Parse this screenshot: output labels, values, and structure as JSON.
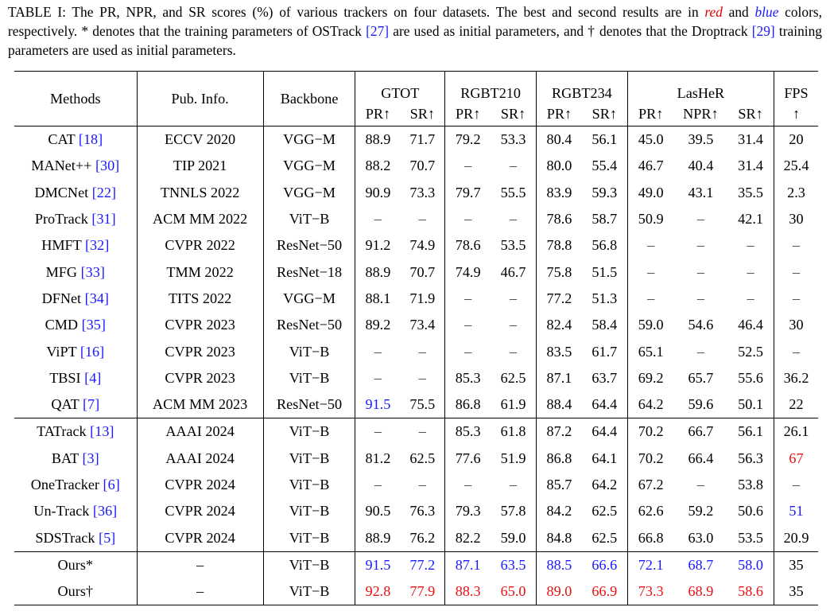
{
  "caption": {
    "part1": "TABLE I: The PR, NPR, and SR scores (%) of various trackers on four datasets. The best and second results are in ",
    "red_word": "red",
    "part2": " and ",
    "blue_word": "blue",
    "part3": " colors, respectively. * denotes that the training parameters of OSTrack ",
    "ref1": "[27]",
    "part4": " are used as initial parameters, and † denotes that the Droptrack ",
    "ref2": "[29]",
    "part5": " training parameters are used as initial parameters."
  },
  "headers": {
    "methods": "Methods",
    "pub": "Pub. Info.",
    "backbone": "Backbone",
    "gtot": "GTOT",
    "rgbt210": "RGBT210",
    "rgbt234": "RGBT234",
    "lasher": "LasHeR",
    "fps": "FPS",
    "pr": "PR↑",
    "sr": "SR↑",
    "npr": "NPR↑",
    "fps_arrow": "↑"
  },
  "colors": {
    "best": "#e81010",
    "second": "#1a1aff"
  },
  "rows": [
    {
      "name": "CAT",
      "ref": "[18]",
      "pub": "ECCV 2020",
      "backbone": "VGG−M",
      "v": [
        "88.9",
        "71.7",
        "79.2",
        "53.3",
        "80.4",
        "56.1",
        "45.0",
        "39.5",
        "31.4",
        "20"
      ],
      "c": [
        "",
        "",
        "",
        "",
        "",
        "",
        "",
        "",
        "",
        ""
      ]
    },
    {
      "name": "MANet++",
      "ref": "[30]",
      "pub": "TIP 2021",
      "backbone": "VGG−M",
      "v": [
        "88.2",
        "70.7",
        "–",
        "–",
        "80.0",
        "55.4",
        "46.7",
        "40.4",
        "31.4",
        "25.4"
      ],
      "c": [
        "",
        "",
        "",
        "",
        "",
        "",
        "",
        "",
        "",
        ""
      ]
    },
    {
      "name": "DMCNet",
      "ref": "[22]",
      "pub": "TNNLS 2022",
      "backbone": "VGG−M",
      "v": [
        "90.9",
        "73.3",
        "79.7",
        "55.5",
        "83.9",
        "59.3",
        "49.0",
        "43.1",
        "35.5",
        "2.3"
      ],
      "c": [
        "",
        "",
        "",
        "",
        "",
        "",
        "",
        "",
        "",
        ""
      ]
    },
    {
      "name": "ProTrack",
      "ref": "[31]",
      "pub": "ACM MM 2022",
      "backbone": "ViT−B",
      "v": [
        "–",
        "–",
        "–",
        "–",
        "78.6",
        "58.7",
        "50.9",
        "–",
        "42.1",
        "30"
      ],
      "c": [
        "",
        "",
        "",
        "",
        "",
        "",
        "",
        "",
        "",
        ""
      ]
    },
    {
      "name": "HMFT",
      "ref": "[32]",
      "pub": "CVPR 2022",
      "backbone": "ResNet−50",
      "v": [
        "91.2",
        "74.9",
        "78.6",
        "53.5",
        "78.8",
        "56.8",
        "–",
        "–",
        "–",
        "–"
      ],
      "c": [
        "",
        "",
        "",
        "",
        "",
        "",
        "",
        "",
        "",
        ""
      ]
    },
    {
      "name": "MFG",
      "ref": "[33]",
      "pub": "TMM 2022",
      "backbone": "ResNet−18",
      "v": [
        "88.9",
        "70.7",
        "74.9",
        "46.7",
        "75.8",
        "51.5",
        "–",
        "–",
        "–",
        "–"
      ],
      "c": [
        "",
        "",
        "",
        "",
        "",
        "",
        "",
        "",
        "",
        ""
      ]
    },
    {
      "name": "DFNet",
      "ref": "[34]",
      "pub": "TITS 2022",
      "backbone": "VGG−M",
      "v": [
        "88.1",
        "71.9",
        "–",
        "–",
        "77.2",
        "51.3",
        "–",
        "–",
        "–",
        "–"
      ],
      "c": [
        "",
        "",
        "",
        "",
        "",
        "",
        "",
        "",
        "",
        ""
      ]
    },
    {
      "name": "CMD",
      "ref": "[35]",
      "pub": "CVPR 2023",
      "backbone": "ResNet−50",
      "v": [
        "89.2",
        "73.4",
        "–",
        "–",
        "82.4",
        "58.4",
        "59.0",
        "54.6",
        "46.4",
        "30"
      ],
      "c": [
        "",
        "",
        "",
        "",
        "",
        "",
        "",
        "",
        "",
        ""
      ]
    },
    {
      "name": "ViPT",
      "ref": "[16]",
      "pub": "CVPR 2023",
      "backbone": "ViT−B",
      "v": [
        "–",
        "–",
        "–",
        "–",
        "83.5",
        "61.7",
        "65.1",
        "–",
        "52.5",
        "–"
      ],
      "c": [
        "",
        "",
        "",
        "",
        "",
        "",
        "",
        "",
        "",
        ""
      ]
    },
    {
      "name": "TBSI",
      "ref": "[4]",
      "pub": "CVPR 2023",
      "backbone": "ViT−B",
      "v": [
        "–",
        "–",
        "85.3",
        "62.5",
        "87.1",
        "63.7",
        "69.2",
        "65.7",
        "55.6",
        "36.2"
      ],
      "c": [
        "",
        "",
        "",
        "",
        "",
        "",
        "",
        "",
        "",
        ""
      ]
    },
    {
      "name": "QAT",
      "ref": "[7]",
      "pub": "ACM MM 2023",
      "backbone": "ResNet−50",
      "v": [
        "91.5",
        "75.5",
        "86.8",
        "61.9",
        "88.4",
        "64.4",
        "64.2",
        "59.6",
        "50.1",
        "22"
      ],
      "c": [
        "second",
        "",
        "",
        "",
        "",
        "",
        "",
        "",
        "",
        ""
      ]
    },
    {
      "name": "TATrack",
      "ref": "[13]",
      "pub": "AAAI 2024",
      "backbone": "ViT−B",
      "v": [
        "–",
        "–",
        "85.3",
        "61.8",
        "87.2",
        "64.4",
        "70.2",
        "66.7",
        "56.1",
        "26.1"
      ],
      "c": [
        "",
        "",
        "",
        "",
        "",
        "",
        "",
        "",
        "",
        ""
      ],
      "rule": true
    },
    {
      "name": "BAT",
      "ref": "[3]",
      "pub": "AAAI 2024",
      "backbone": "ViT−B",
      "v": [
        "81.2",
        "62.5",
        "77.6",
        "51.9",
        "86.8",
        "64.1",
        "70.2",
        "66.4",
        "56.3",
        "67"
      ],
      "c": [
        "",
        "",
        "",
        "",
        "",
        "",
        "",
        "",
        "",
        "best"
      ]
    },
    {
      "name": "OneTracker",
      "ref": "[6]",
      "pub": "CVPR 2024",
      "backbone": "ViT−B",
      "v": [
        "–",
        "–",
        "–",
        "–",
        "85.7",
        "64.2",
        "67.2",
        "–",
        "53.8",
        "–"
      ],
      "c": [
        "",
        "",
        "",
        "",
        "",
        "",
        "",
        "",
        "",
        ""
      ]
    },
    {
      "name": "Un-Track",
      "ref": "[36]",
      "pub": "CVPR 2024",
      "backbone": "ViT−B",
      "v": [
        "90.5",
        "76.3",
        "79.3",
        "57.8",
        "84.2",
        "62.5",
        "62.6",
        "59.2",
        "50.6",
        "51"
      ],
      "c": [
        "",
        "",
        "",
        "",
        "",
        "",
        "",
        "",
        "",
        "second"
      ]
    },
    {
      "name": "SDSTrack",
      "ref": "[5]",
      "pub": "CVPR 2024",
      "backbone": "ViT−B",
      "v": [
        "88.9",
        "76.2",
        "82.2",
        "59.0",
        "84.8",
        "62.5",
        "66.8",
        "63.0",
        "53.5",
        "20.9"
      ],
      "c": [
        "",
        "",
        "",
        "",
        "",
        "",
        "",
        "",
        "",
        ""
      ]
    },
    {
      "name": "Ours*",
      "ref": "",
      "pub": "–",
      "backbone": "ViT−B",
      "v": [
        "91.5",
        "77.2",
        "87.1",
        "63.5",
        "88.5",
        "66.6",
        "72.1",
        "68.7",
        "58.0",
        "35"
      ],
      "c": [
        "second",
        "second",
        "second",
        "second",
        "second",
        "second",
        "second",
        "second",
        "second",
        ""
      ],
      "rule": true
    },
    {
      "name": "Ours†",
      "ref": "",
      "pub": "–",
      "backbone": "ViT−B",
      "v": [
        "92.8",
        "77.9",
        "88.3",
        "65.0",
        "89.0",
        "66.9",
        "73.3",
        "68.9",
        "58.6",
        "35"
      ],
      "c": [
        "best",
        "best",
        "best",
        "best",
        "best",
        "best",
        "best",
        "best",
        "best",
        ""
      ],
      "last": true
    }
  ]
}
